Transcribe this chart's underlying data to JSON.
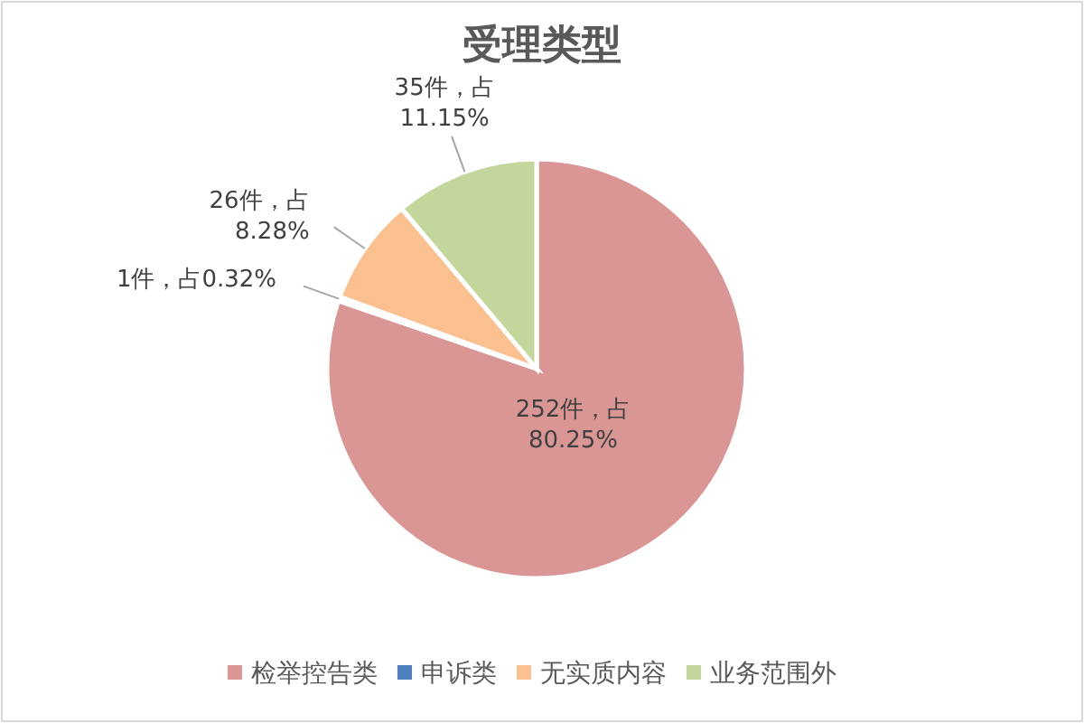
{
  "chart_data": {
    "type": "pie",
    "title": "受理类型",
    "categories": [
      "检举控告类",
      "申诉类",
      "无实质内容",
      "业务范围外"
    ],
    "values": [
      252,
      1,
      26,
      35
    ],
    "colors": [
      "#d99694",
      "#4f81bd",
      "#fac090",
      "#c3d69b"
    ],
    "value_labels": [
      "252件，占\n80.25%",
      "1件，占0.32%",
      "26件，占\n8.28%",
      "35件，占\n11.15%"
    ],
    "legend": "bottom"
  }
}
